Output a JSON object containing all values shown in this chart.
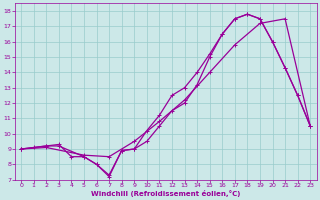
{
  "xlabel": "Windchill (Refroidissement éolien,°C)",
  "bg_color": "#cce8e8",
  "grid_color": "#99cccc",
  "line_color": "#990099",
  "xlim": [
    -0.5,
    23.5
  ],
  "ylim": [
    7,
    18.5
  ],
  "xticks": [
    0,
    1,
    2,
    3,
    4,
    5,
    6,
    7,
    8,
    9,
    10,
    11,
    12,
    13,
    14,
    15,
    16,
    17,
    18,
    19,
    20,
    21,
    22,
    23
  ],
  "yticks": [
    7,
    8,
    9,
    10,
    11,
    12,
    13,
    14,
    15,
    16,
    17,
    18
  ],
  "line1_x": [
    0,
    1,
    2,
    3,
    4,
    5,
    6,
    7,
    8,
    9,
    10,
    11,
    12,
    13,
    14,
    15,
    16,
    17,
    18,
    19,
    20,
    21,
    22,
    23
  ],
  "line1_y": [
    9.0,
    9.1,
    9.2,
    9.3,
    8.5,
    8.5,
    8.0,
    7.2,
    8.9,
    9.0,
    9.5,
    10.5,
    11.5,
    12.0,
    13.2,
    15.0,
    16.5,
    17.5,
    17.8,
    17.5,
    16.0,
    14.3,
    12.5,
    10.5
  ],
  "line2_x": [
    0,
    2,
    3,
    5,
    6,
    7,
    8,
    9,
    10,
    11,
    12,
    13,
    14,
    15,
    16,
    17,
    18,
    19,
    20,
    21,
    22,
    23
  ],
  "line2_y": [
    9.0,
    9.2,
    9.2,
    8.5,
    8.0,
    7.3,
    8.9,
    9.0,
    10.2,
    11.2,
    12.5,
    13.0,
    14.0,
    15.2,
    16.5,
    17.5,
    17.8,
    17.5,
    16.0,
    14.3,
    12.5,
    10.5
  ],
  "line3_x": [
    0,
    2,
    5,
    7,
    9,
    11,
    13,
    15,
    17,
    19,
    21,
    23
  ],
  "line3_y": [
    9.0,
    9.1,
    8.6,
    8.5,
    9.5,
    10.8,
    12.2,
    14.0,
    15.8,
    17.2,
    17.5,
    10.5
  ]
}
